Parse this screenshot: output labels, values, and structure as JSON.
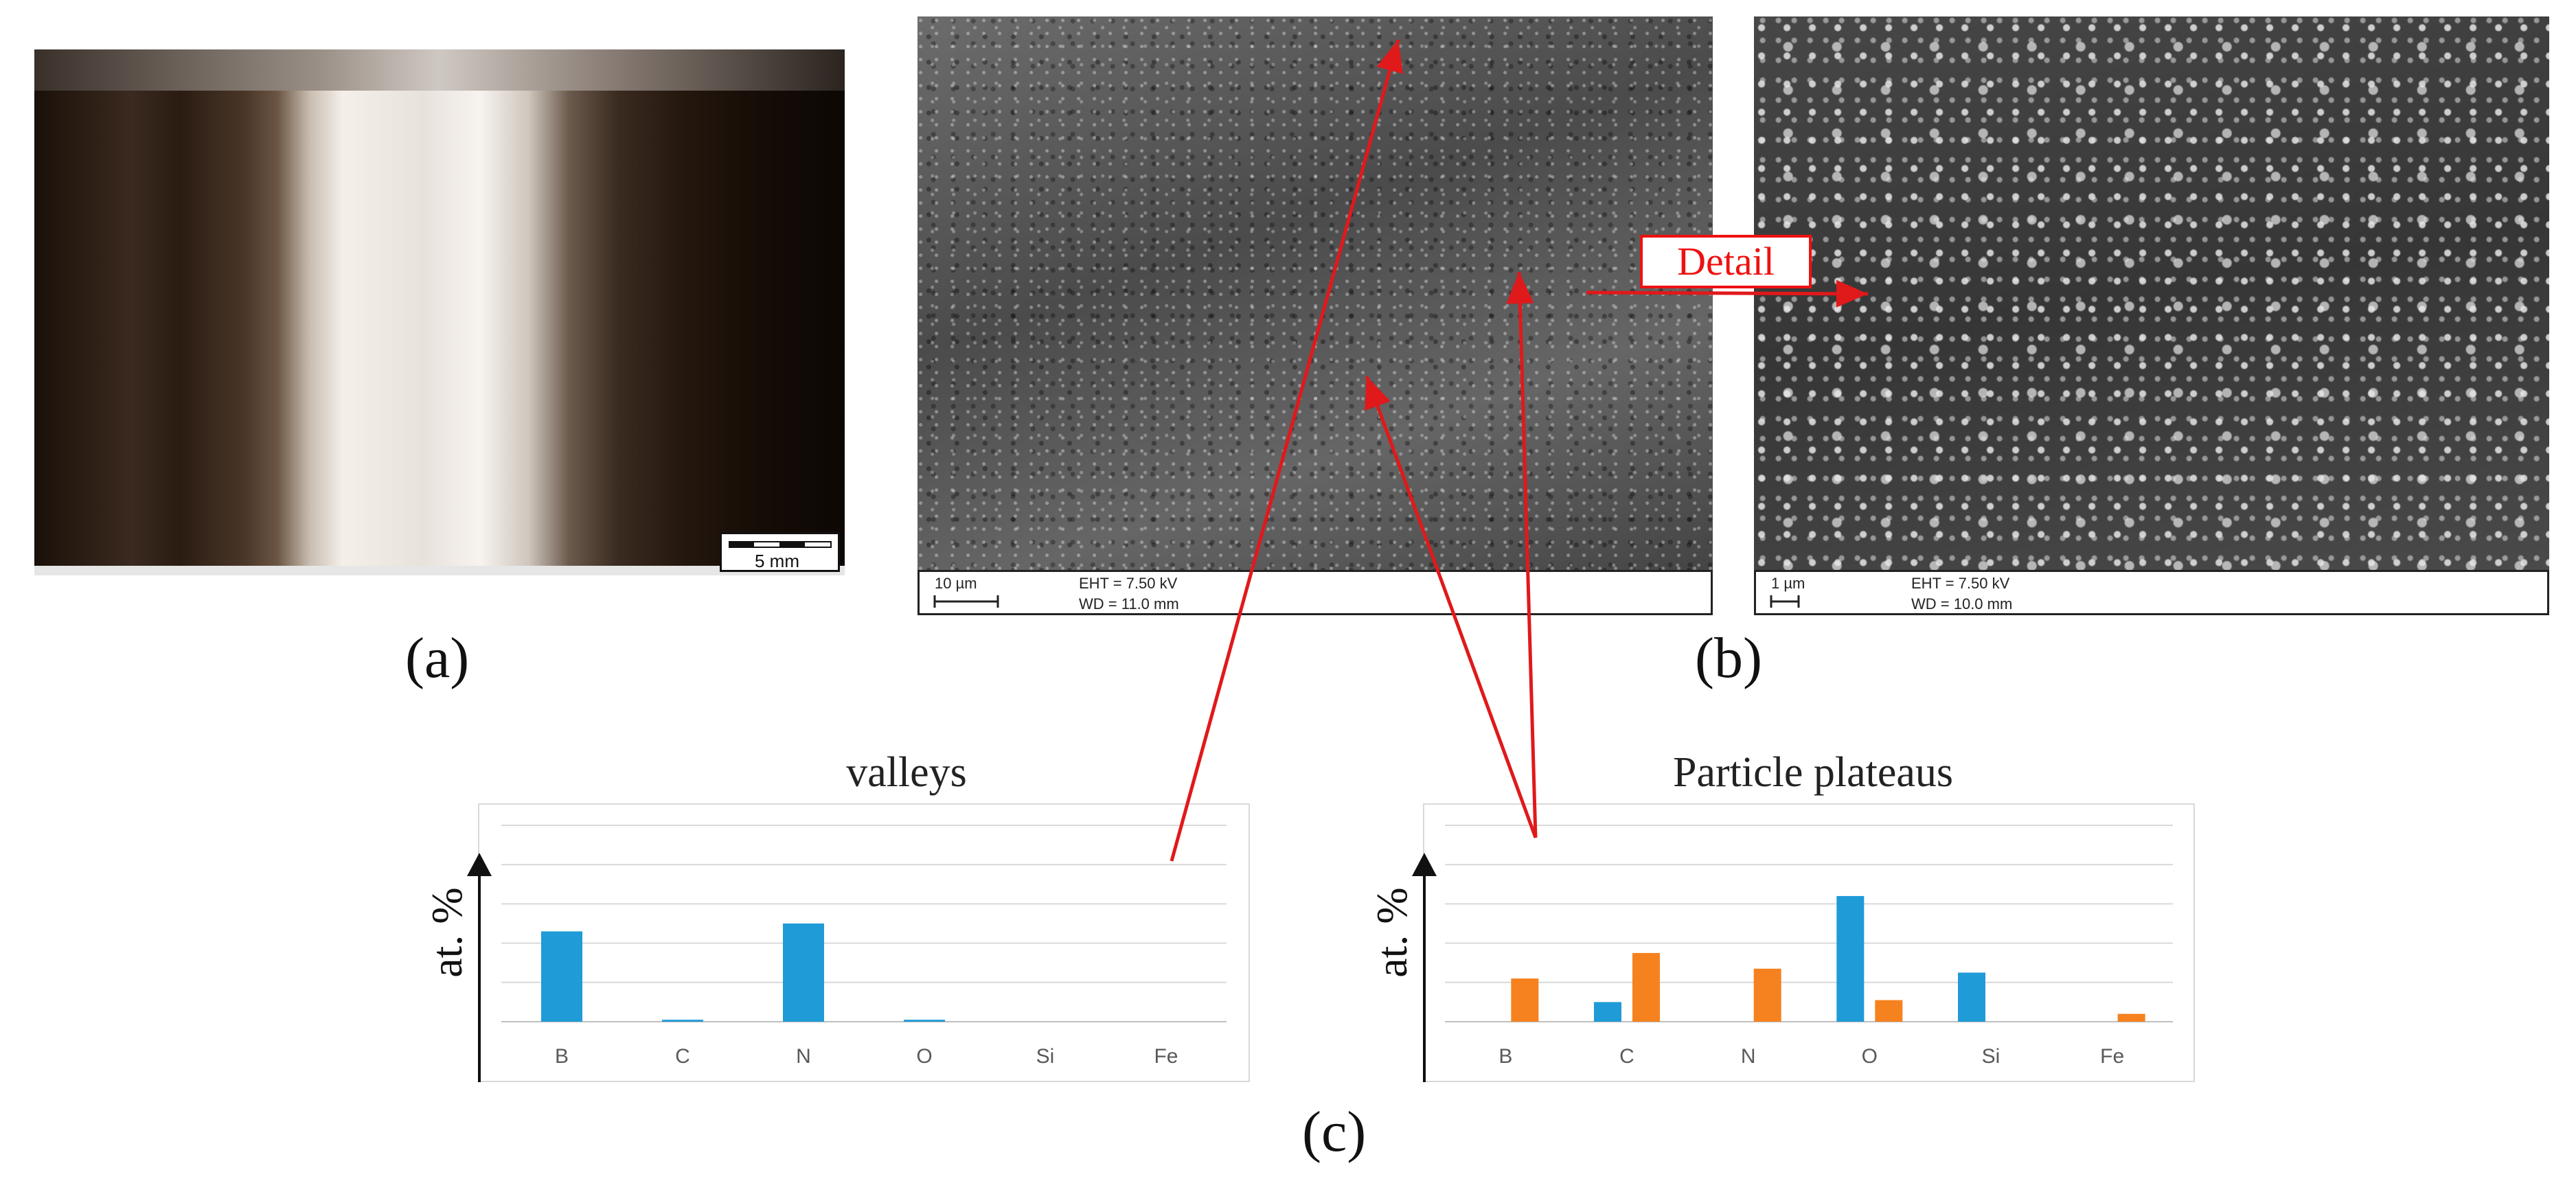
{
  "panels": {
    "a": {
      "label": "(a)",
      "scale_bar": "5 mm"
    },
    "b": {
      "label": "(b)",
      "detail_label": "Detail",
      "left_image": {
        "scale": "10 µm",
        "eht": "EHT =  7.50 kV",
        "wd": "WD = 11.0 mm"
      },
      "right_image": {
        "scale": "1 µm",
        "eht": "EHT =  7.50 kV",
        "wd": "WD = 10.0 mm"
      }
    },
    "c": {
      "label": "(c)"
    }
  },
  "colors": {
    "series_blue": "#1f9bd7",
    "series_orange": "#f5821f",
    "arrow_red": "#e0191b"
  },
  "chart_data": [
    {
      "type": "bar",
      "title": "valleys",
      "ylabel": "at. %",
      "categories": [
        "B",
        "C",
        "N",
        "O",
        "Si",
        "Fe"
      ],
      "series": [
        {
          "values": [
            23,
            0.5,
            25,
            0.5,
            0,
            0
          ]
        }
      ],
      "ylim": [
        0,
        50
      ],
      "grid": true
    },
    {
      "type": "bar",
      "title": "Particle plateaus",
      "ylabel": "at. %",
      "categories": [
        "B",
        "C",
        "N",
        "O",
        "Si",
        "Fe"
      ],
      "series": [
        {
          "values": [
            0,
            5,
            0,
            32,
            12.5,
            0
          ]
        },
        {
          "values": [
            11,
            17.5,
            13.5,
            5.5,
            0,
            2
          ]
        }
      ],
      "ylim": [
        0,
        50
      ],
      "grid": true
    }
  ]
}
